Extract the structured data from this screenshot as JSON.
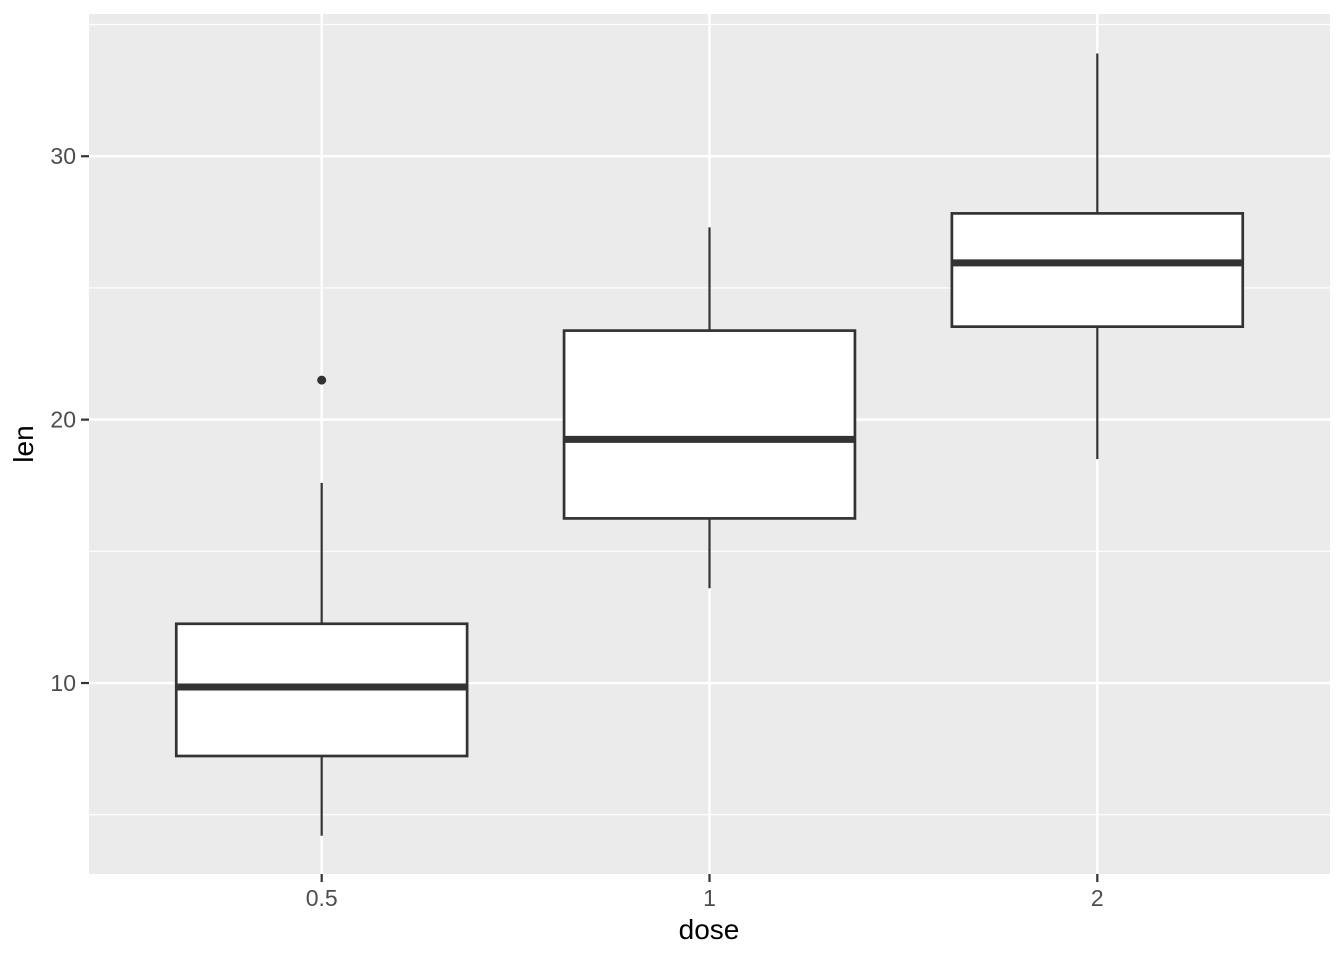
{
  "figure": {
    "background": "#FFFFFF",
    "panel_background": "#EBEBEB",
    "grid_color": "#FFFFFF",
    "box_fill": "#FFFFFF",
    "box_stroke": "#333333",
    "median_stroke": "#333333",
    "whisker_stroke": "#333333",
    "outlier_fill": "#333333",
    "tick_mark_color": "#333333",
    "axis_text_color": "#4D4D4D",
    "axis_title_color": "#000000"
  },
  "chart_data": {
    "type": "boxplot",
    "title": "",
    "xlabel": "dose",
    "ylabel": "len",
    "categories": [
      "0.5",
      "1",
      "2"
    ],
    "series": [
      {
        "category": "0.5",
        "whisker_low": 4.2,
        "q1": 7.23,
        "median": 9.85,
        "q3": 12.25,
        "whisker_high": 17.6,
        "outliers": [
          21.5
        ]
      },
      {
        "category": "1",
        "whisker_low": 13.6,
        "q1": 16.25,
        "median": 19.25,
        "q3": 23.38,
        "whisker_high": 27.3,
        "outliers": []
      },
      {
        "category": "2",
        "whisker_low": 18.5,
        "q1": 23.53,
        "median": 25.95,
        "q3": 27.83,
        "whisker_high": 33.9,
        "outliers": []
      }
    ],
    "y_major_ticks": [
      10,
      20,
      30
    ],
    "y_minor_gridlines": [
      5,
      15,
      25,
      35
    ],
    "ylim": [
      2.75,
      35.4
    ],
    "grid": true,
    "legend": "none"
  }
}
